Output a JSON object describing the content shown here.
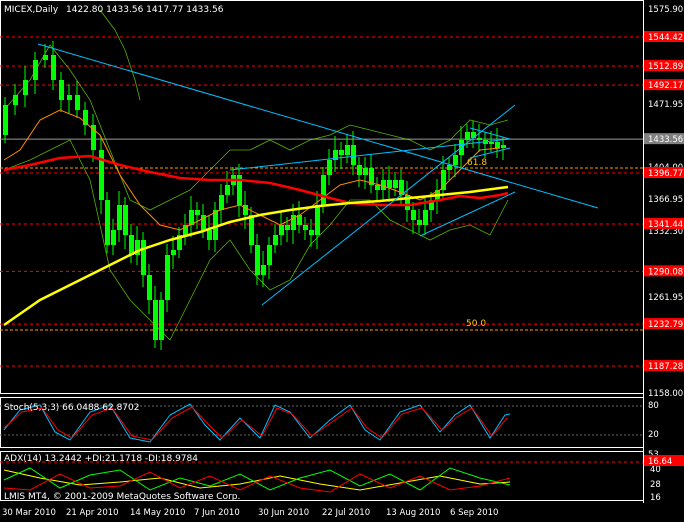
{
  "header": {
    "symbol": "MICEX,Daily",
    "ohlc": "1422.80 1433.56 1417.77 1433.56"
  },
  "price_axis": {
    "labels": [
      "1575.90",
      "1471.95",
      "1404.00",
      "1366.95",
      "1332.30",
      "1261.95",
      "1158.00"
    ],
    "marked_levels": [
      {
        "label": "1544.42",
        "color": "#ff0000"
      },
      {
        "label": "1512.89",
        "color": "#ff0000"
      },
      {
        "label": "1492.17",
        "color": "#ff0000"
      },
      {
        "label": "1433.56",
        "color": "#808080"
      },
      {
        "label": "1396.77",
        "color": "#ff0000"
      },
      {
        "label": "1341.44",
        "color": "#ff0000"
      },
      {
        "label": "1290.08",
        "color": "#ff0000"
      },
      {
        "label": "1232.79",
        "color": "#ff0000"
      },
      {
        "label": "1187.28",
        "color": "#ff0000"
      }
    ]
  },
  "fib_labels": {
    "fib_618": "61.8",
    "fib_50": "50.0"
  },
  "stoch": {
    "title": "Stoch(5,3,3) 66.0488 62.8702",
    "axis": [
      "80",
      "20"
    ]
  },
  "adx": {
    "title": "ADX(14) 13.2442 +DI:21.1718 -DI:18.9784",
    "axis": [
      "53",
      "40",
      "28",
      "16"
    ],
    "level_label": "16.64",
    "copyright": "LMIS MT4, © 2001-2009 MetaQuotes Software Corp."
  },
  "date_axis": [
    "30 Mar 2010",
    "21 Apr 2010",
    "14 May 2010",
    "7 Jun 2010",
    "30 Jun 2010",
    "22 Jul 2010",
    "13 Aug 2010",
    "6 Sep 2010"
  ],
  "colors": {
    "background": "#000000",
    "candles": "#00ff00",
    "hlines": "#ff0000",
    "fib": "#ff9900",
    "trendlines": "#00bfff",
    "ma_long": "#ff0000",
    "ma_200": "#ffff00",
    "bands": "#7cfc00",
    "stoch_main": "#00bfff",
    "stoch_signal": "#ff0000",
    "adx_line": "#ffff00",
    "plus_di": "#00ff00",
    "minus_di": "#ff0000"
  }
}
